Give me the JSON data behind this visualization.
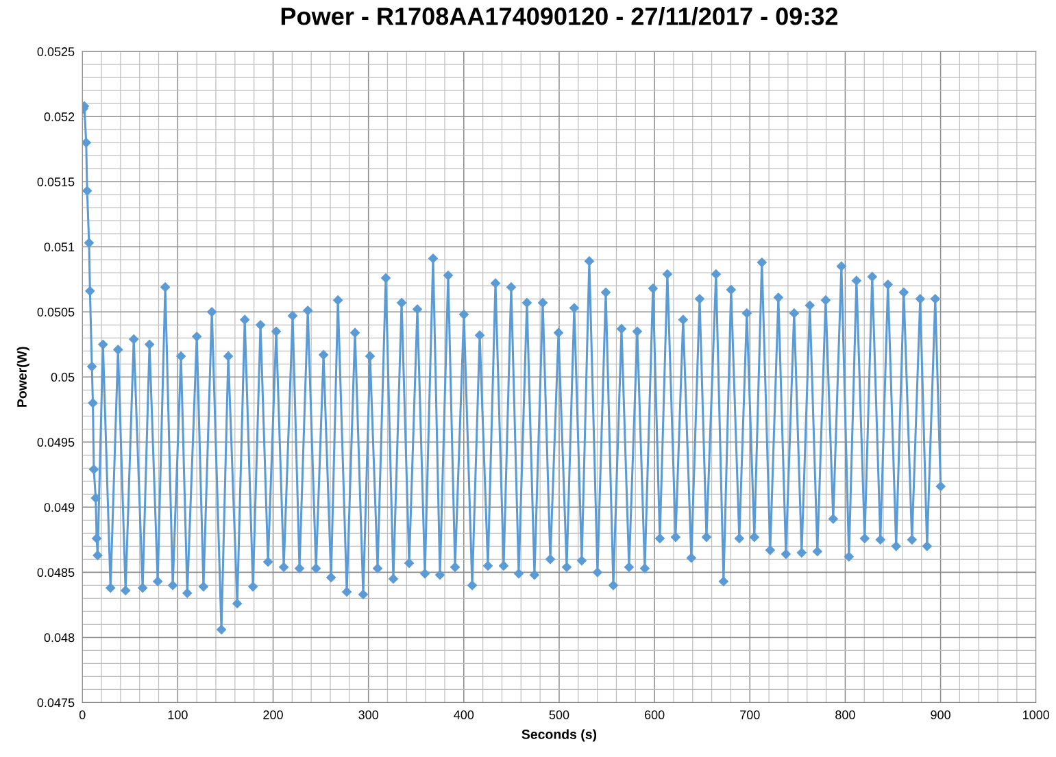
{
  "chart_data": {
    "type": "line",
    "title": "Power - R1708AA174090120 - 27/11/2017 - 09:32",
    "xlabel": "Seconds (s)",
    "ylabel": "Power(W)",
    "xlim": [
      0,
      1000
    ],
    "xticks": [
      0,
      100,
      200,
      300,
      400,
      500,
      600,
      700,
      800,
      900,
      1000
    ],
    "ylim": [
      0.0475,
      0.0525
    ],
    "yticks": [
      0.0475,
      0.048,
      0.0485,
      0.049,
      0.0495,
      0.05,
      0.0505,
      0.051,
      0.0515,
      0.052,
      0.0525
    ],
    "grid": true,
    "marker": "diamond",
    "line_style": "solid",
    "series": [
      {
        "color": "#5b9bd5",
        "x": [
          1,
          2,
          4,
          5,
          7,
          8,
          10,
          11,
          12,
          14,
          15,
          16,
          21.6,
          29.5,
          37.4,
          45.3,
          53.9,
          63.2,
          70.4,
          79,
          86.9,
          94.8,
          103.4,
          110,
          120,
          127,
          135.8,
          145.8,
          153,
          162.4,
          170.3,
          178.9,
          186.8,
          194.7,
          203.3,
          211.2,
          220.5,
          227.7,
          236.4,
          245,
          252.9,
          260.8,
          268,
          277.3,
          285.9,
          294.5,
          301.7,
          309.6,
          318.2,
          326.1,
          334.8,
          342.7,
          351.3,
          359.2,
          367.8,
          375,
          383.6,
          390.8,
          400.1,
          408.8,
          416.7,
          425.3,
          433.2,
          441.8,
          449.7,
          457.6,
          466.2,
          474.1,
          482.8,
          490.7,
          499.3,
          507.9,
          515.8,
          523.7,
          531.6,
          540.2,
          548.9,
          556.8,
          565.4,
          573.3,
          581.9,
          589.8,
          598.4,
          605.6,
          613.5,
          622.1,
          630,
          638.6,
          647.3,
          654.5,
          664.5,
          672.4,
          680.3,
          688.9,
          696.8,
          704.7,
          712.6,
          721.3,
          729.9,
          737.8,
          746.4,
          754.3,
          762.9,
          770.8,
          779.5,
          787.4,
          796,
          803.9,
          811.8,
          820.4,
          828.3,
          836.9,
          844.8,
          853.4,
          861.4,
          870,
          878.6,
          885.8,
          894.4,
          900.1
        ],
        "values": [
          0.05206,
          0.05208,
          0.0518,
          0.05143,
          0.05103,
          0.05066,
          0.05008,
          0.0498,
          0.04929,
          0.04907,
          0.04876,
          0.04863,
          0.05025,
          0.04838,
          0.05021,
          0.04836,
          0.05029,
          0.04838,
          0.05025,
          0.04843,
          0.05069,
          0.0484,
          0.05016,
          0.04834,
          0.05031,
          0.04839,
          0.0505,
          0.04806,
          0.05016,
          0.04826,
          0.05044,
          0.04839,
          0.0504,
          0.04858,
          0.05035,
          0.04854,
          0.05047,
          0.04853,
          0.05051,
          0.04853,
          0.05017,
          0.04846,
          0.05059,
          0.04835,
          0.05034,
          0.04833,
          0.05016,
          0.04853,
          0.05076,
          0.04845,
          0.05057,
          0.04857,
          0.05052,
          0.04849,
          0.05091,
          0.04848,
          0.05078,
          0.04854,
          0.05048,
          0.0484,
          0.05032,
          0.04855,
          0.05072,
          0.04855,
          0.05069,
          0.04849,
          0.05057,
          0.04848,
          0.05057,
          0.0486,
          0.05034,
          0.04854,
          0.05053,
          0.04859,
          0.05089,
          0.0485,
          0.05065,
          0.0484,
          0.05037,
          0.04854,
          0.05035,
          0.04853,
          0.05068,
          0.04876,
          0.05079,
          0.04877,
          0.05044,
          0.04861,
          0.0506,
          0.04877,
          0.05079,
          0.04843,
          0.05067,
          0.04876,
          0.05049,
          0.04877,
          0.05088,
          0.04867,
          0.05061,
          0.04864,
          0.05049,
          0.04865,
          0.05055,
          0.04866,
          0.05059,
          0.04891,
          0.05085,
          0.04862,
          0.05074,
          0.04876,
          0.05077,
          0.04875,
          0.05071,
          0.0487,
          0.05065,
          0.04875,
          0.0506,
          0.0487,
          0.0506,
          0.04916
        ]
      }
    ]
  }
}
